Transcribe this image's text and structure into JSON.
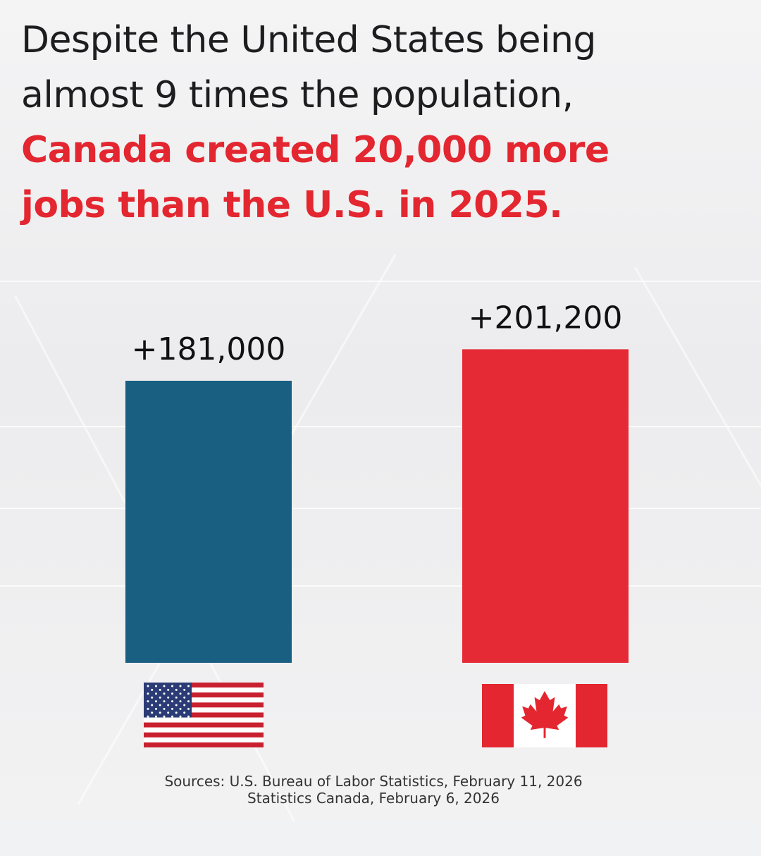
{
  "headline": {
    "line1": "Despite the United States being",
    "line2": "almost 9 times the population,",
    "line3": "Canada created 20,000 more",
    "line4": "jobs than the U.S. in 2025."
  },
  "chart_data": {
    "type": "bar",
    "categories": [
      "United States",
      "Canada"
    ],
    "values": [
      181000,
      201200
    ],
    "value_labels": [
      "+181,000",
      "+201,200"
    ],
    "colors": [
      "#195f82",
      "#e52a35"
    ],
    "category_icons": [
      "us-flag-icon",
      "canada-flag-icon"
    ],
    "title": "",
    "xlabel": "",
    "ylabel": "",
    "grid": false
  },
  "sources": {
    "line1": "Sources: U.S. Bureau of Labor Statistics, February 11, 2026",
    "line2": "Statistics Canada, February 6, 2026"
  }
}
